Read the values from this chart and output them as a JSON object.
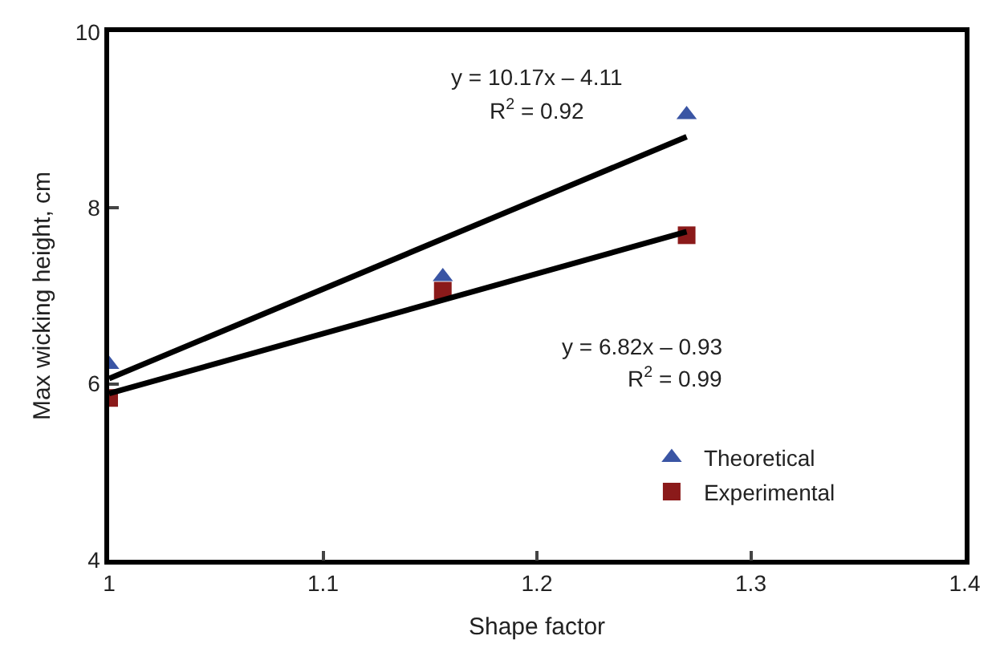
{
  "chart_data": {
    "type": "scatter",
    "xlabel": "Shape factor",
    "ylabel": "Max wicking height, cm",
    "xlim": [
      1,
      1.4
    ],
    "xticks": [
      1,
      1.1,
      1.2,
      1.3,
      1.4
    ],
    "ylim": [
      4,
      10
    ],
    "yticks": [
      4,
      6,
      8,
      10
    ],
    "legend": "bottom right",
    "series": [
      {
        "name": "Theoretical",
        "color": "#3a55a4",
        "marker": "triangle",
        "x": [
          1.0,
          1.156,
          1.27
        ],
        "values": [
          6.22,
          7.22,
          9.06
        ]
      },
      {
        "name": "Experimental",
        "color": "#8b1a1a",
        "marker": "square",
        "x": [
          1.0,
          1.156,
          1.27
        ],
        "values": [
          5.84,
          7.06,
          7.69
        ]
      },
      {
        "type": "line",
        "color": "#000000",
        "x": [
          1.0,
          1.27
        ],
        "values": [
          6.06,
          8.81
        ]
      },
      {
        "type": "line",
        "color": "#000000",
        "x": [
          1.0,
          1.27
        ],
        "values": [
          5.89,
          7.73
        ]
      }
    ],
    "annotations": [
      "y = 10.17x – 4.11",
      "R$^{2}$ = 0.92",
      "y = 6.82x – 0.93",
      "R$^{2}$ = 0.99"
    ]
  }
}
